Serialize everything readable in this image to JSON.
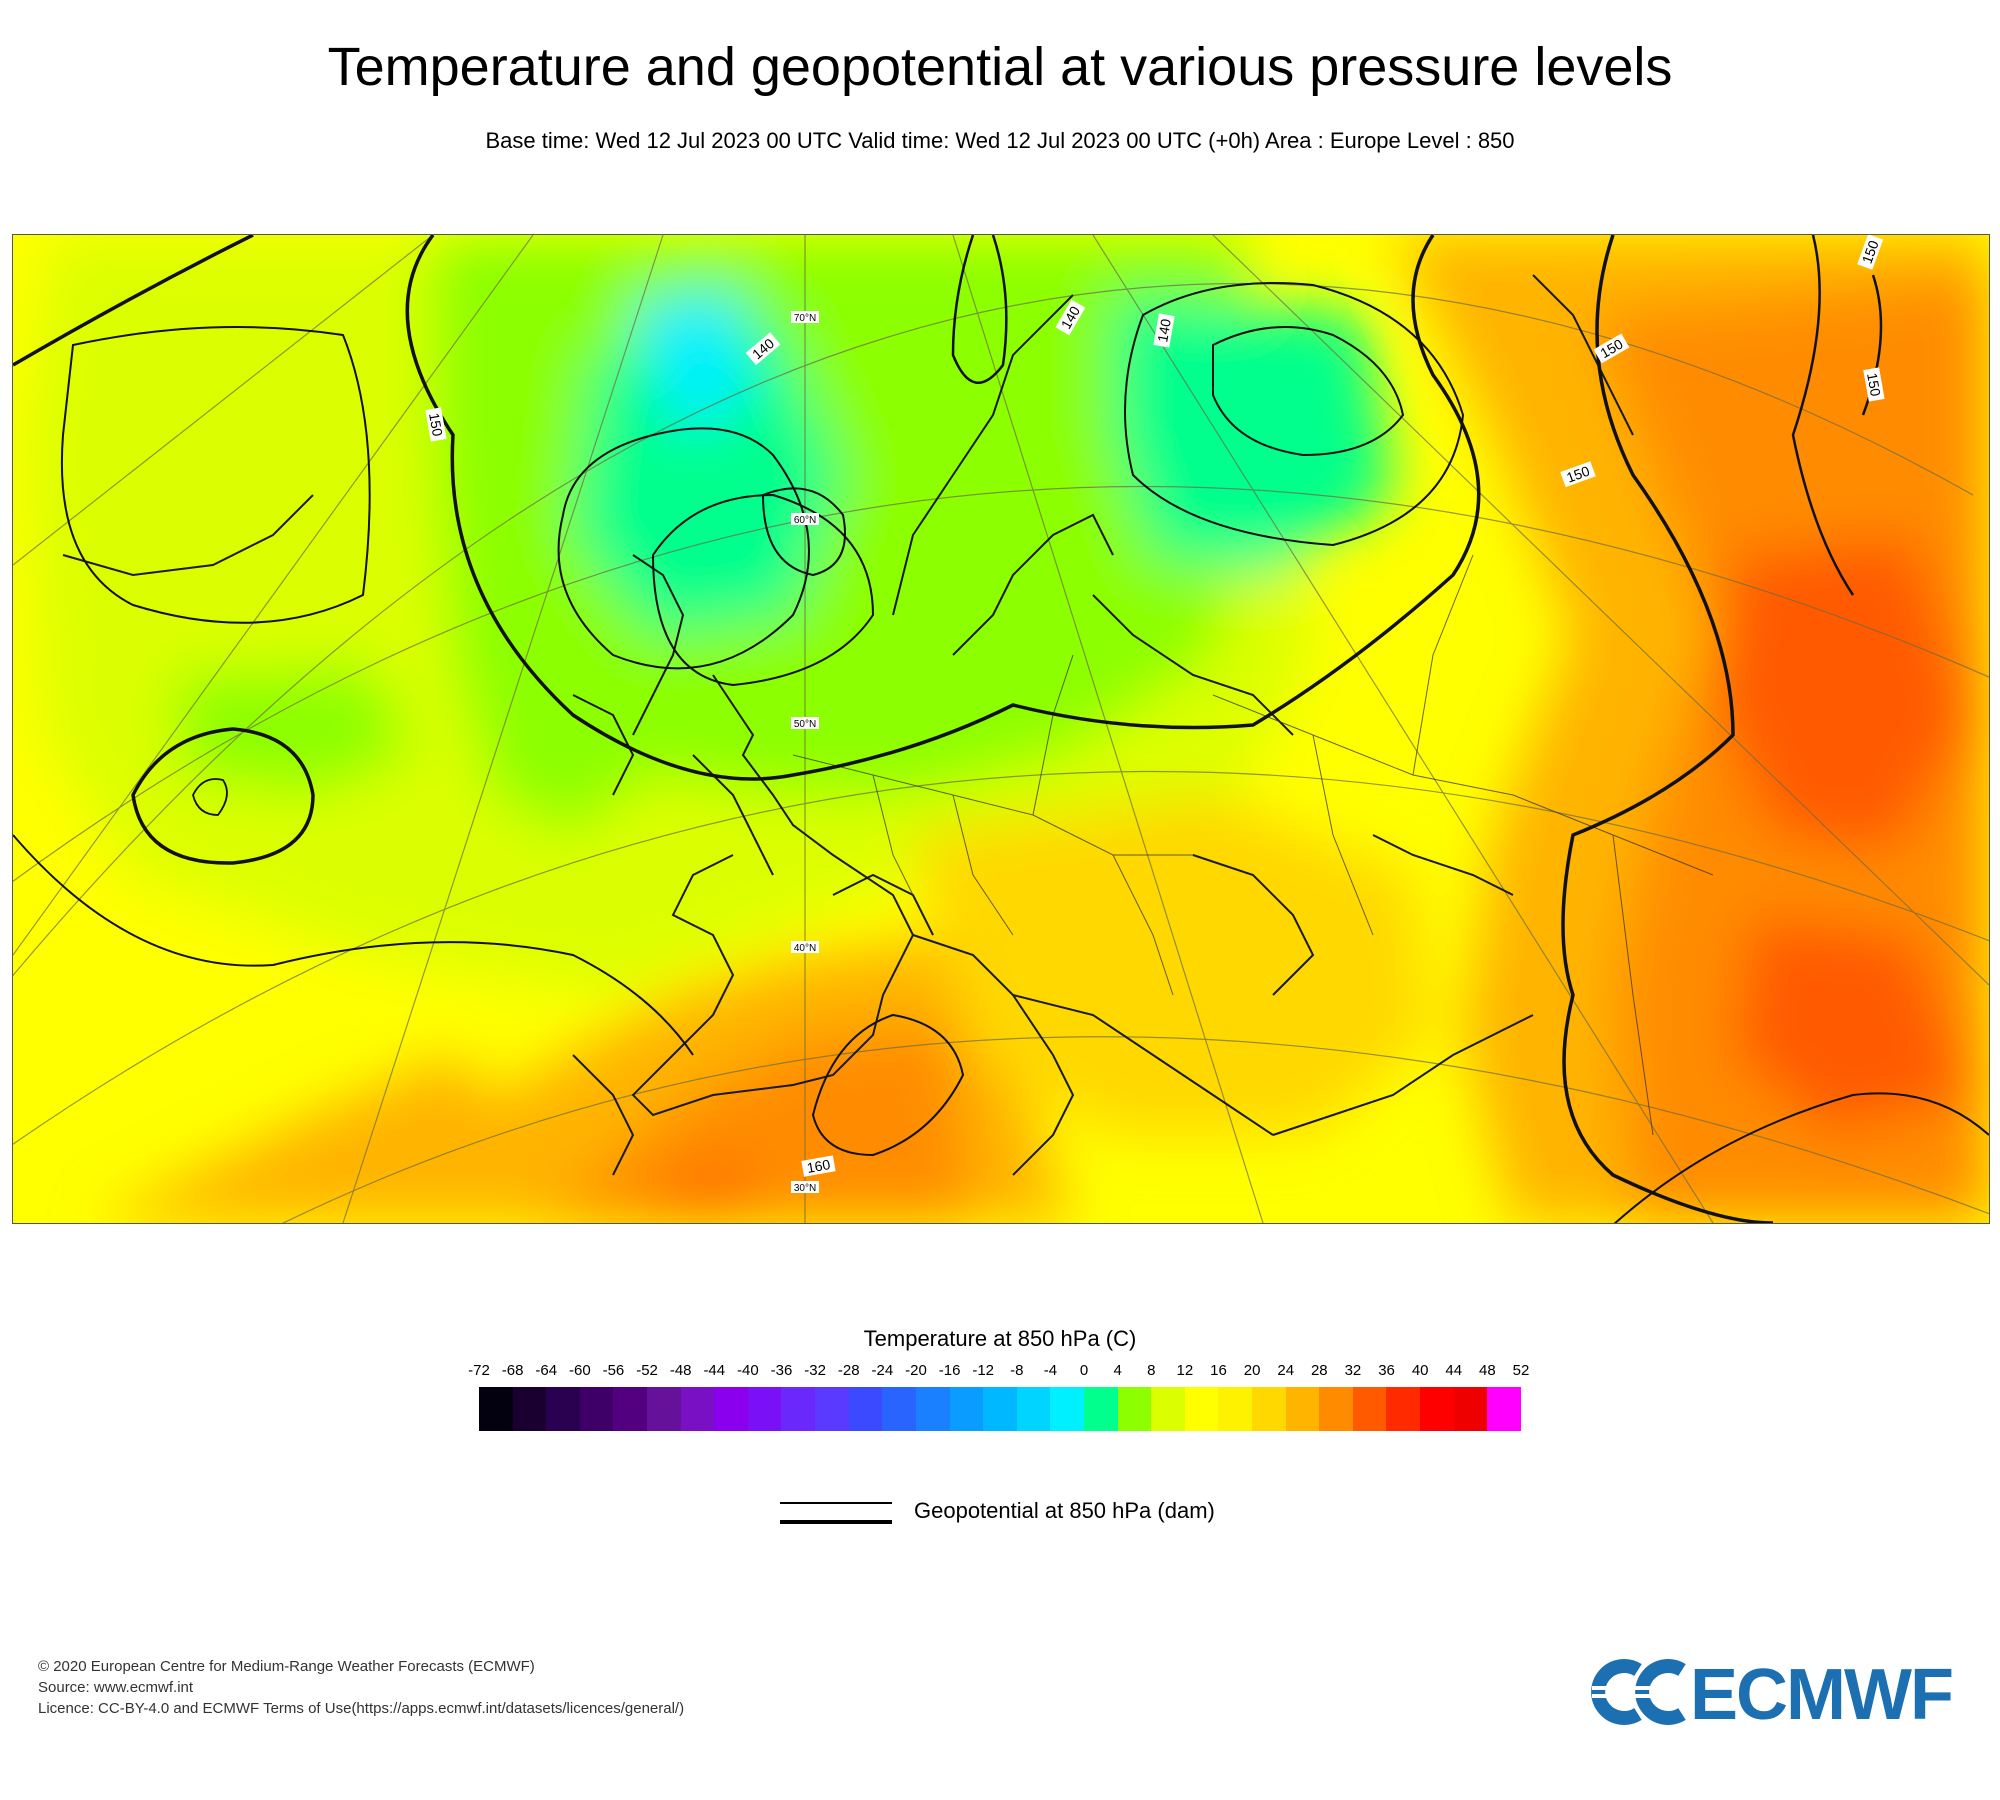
{
  "header": {
    "title": "Temperature and geopotential at various pressure levels",
    "subtitle": "Base time: Wed 12 Jul 2023 00 UTC Valid time: Wed 12 Jul 2023 00 UTC (+0h) Area : Europe Level : 850"
  },
  "map": {
    "latitude_labels": [
      "70°N",
      "60°N",
      "50°N",
      "40°N",
      "30°N"
    ],
    "contour_labels": [
      "150",
      "140",
      "140",
      "140",
      "150",
      "150",
      "150",
      "150",
      "160"
    ]
  },
  "colorbar": {
    "title": "Temperature at 850 hPa (C)",
    "ticks": [
      "-72",
      "-68",
      "-64",
      "-60",
      "-56",
      "-52",
      "-48",
      "-44",
      "-40",
      "-36",
      "-32",
      "-28",
      "-24",
      "-20",
      "-16",
      "-12",
      "-8",
      "-4",
      "0",
      "4",
      "8",
      "12",
      "16",
      "20",
      "24",
      "28",
      "32",
      "36",
      "40",
      "44",
      "48",
      "52"
    ],
    "colors": [
      "#030010",
      "#1a0030",
      "#2a0050",
      "#3e0068",
      "#520080",
      "#66119a",
      "#7a10c4",
      "#8a00ee",
      "#7a10f5",
      "#6a28fa",
      "#5a3aff",
      "#3b49ff",
      "#2a64ff",
      "#1a80ff",
      "#0a9cff",
      "#00b8ff",
      "#00d4ff",
      "#00f0ff",
      "#00ff8c",
      "#8cff00",
      "#dcff00",
      "#ffff00",
      "#fff200",
      "#ffd800",
      "#ffb400",
      "#ff8c00",
      "#ff5a00",
      "#ff2a00",
      "#ff0000",
      "#ee0000",
      "#ff00ff"
    ]
  },
  "legend": {
    "label": "Geopotential at 850 hPa (dam)"
  },
  "footer": {
    "copyright": "© 2020 European Centre for Medium-Range Weather Forecasts (ECMWF)",
    "source": "Source: www.ecmwf.int",
    "licence": "Licence: CC-BY-4.0 and ECMWF Terms of Use(https://apps.ecmwf.int/datasets/licences/general/)"
  },
  "logo": {
    "text": "ECMWF",
    "color": "#1c6fb0"
  }
}
